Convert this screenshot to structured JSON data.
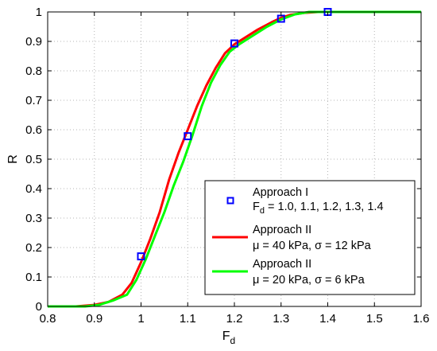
{
  "chart_data": {
    "type": "line",
    "xlabel": "F",
    "xlabel_subscript": "d",
    "ylabel": "R",
    "xlim": [
      0.8,
      1.6
    ],
    "ylim": [
      0,
      1
    ],
    "grid": true,
    "legend_placement": "bottom-right",
    "x_ticks": [
      "0.8",
      "0.9",
      "1",
      "1.1",
      "1.2",
      "1.3",
      "1.4",
      "1.5",
      "1.6"
    ],
    "y_ticks": [
      "0",
      "0.1",
      "0.2",
      "0.3",
      "0.4",
      "0.5",
      "0.6",
      "0.7",
      "0.8",
      "0.9",
      "1"
    ],
    "series": [
      {
        "name": "Approach I",
        "name_line2_prefix": "F",
        "name_line2_subscript": "d",
        "name_line2_suffix": " = 1.0, 1.1, 1.2, 1.3, 1.4",
        "style": "markers",
        "color": "#0000ff",
        "marker": "square",
        "points": [
          [
            1.0,
            0.17
          ],
          [
            1.1,
            0.578
          ],
          [
            1.2,
            0.893
          ],
          [
            1.3,
            0.977
          ],
          [
            1.4,
            1.0
          ]
        ]
      },
      {
        "name": "Approach II",
        "name_line2": "μ = 40 kPa, σ = 12 kPa",
        "style": "line",
        "color": "#ff0000",
        "points": [
          [
            0.8,
            0
          ],
          [
            0.86,
            0
          ],
          [
            0.9,
            0.005
          ],
          [
            0.93,
            0.015
          ],
          [
            0.96,
            0.04
          ],
          [
            0.98,
            0.08
          ],
          [
            1.0,
            0.15
          ],
          [
            1.02,
            0.23
          ],
          [
            1.04,
            0.32
          ],
          [
            1.06,
            0.43
          ],
          [
            1.08,
            0.52
          ],
          [
            1.1,
            0.6
          ],
          [
            1.12,
            0.68
          ],
          [
            1.14,
            0.75
          ],
          [
            1.16,
            0.81
          ],
          [
            1.18,
            0.86
          ],
          [
            1.2,
            0.89
          ],
          [
            1.22,
            0.91
          ],
          [
            1.25,
            0.94
          ],
          [
            1.28,
            0.965
          ],
          [
            1.3,
            0.98
          ],
          [
            1.32,
            0.99
          ],
          [
            1.35,
            0.997
          ],
          [
            1.38,
            1.0
          ],
          [
            1.6,
            1.0
          ]
        ]
      },
      {
        "name": "Approach II",
        "name_line2": "μ = 20 kPa, σ = 6 kPa",
        "style": "line",
        "color": "#00ff00",
        "points": [
          [
            0.8,
            0
          ],
          [
            0.88,
            0
          ],
          [
            0.91,
            0.005
          ],
          [
            0.94,
            0.02
          ],
          [
            0.97,
            0.04
          ],
          [
            0.99,
            0.09
          ],
          [
            1.01,
            0.16
          ],
          [
            1.03,
            0.24
          ],
          [
            1.05,
            0.32
          ],
          [
            1.07,
            0.41
          ],
          [
            1.09,
            0.49
          ],
          [
            1.11,
            0.58
          ],
          [
            1.13,
            0.68
          ],
          [
            1.15,
            0.76
          ],
          [
            1.17,
            0.82
          ],
          [
            1.19,
            0.865
          ],
          [
            1.21,
            0.89
          ],
          [
            1.24,
            0.92
          ],
          [
            1.27,
            0.95
          ],
          [
            1.3,
            0.975
          ],
          [
            1.33,
            0.992
          ],
          [
            1.36,
            1.0
          ],
          [
            1.6,
            1.0
          ]
        ]
      }
    ]
  }
}
